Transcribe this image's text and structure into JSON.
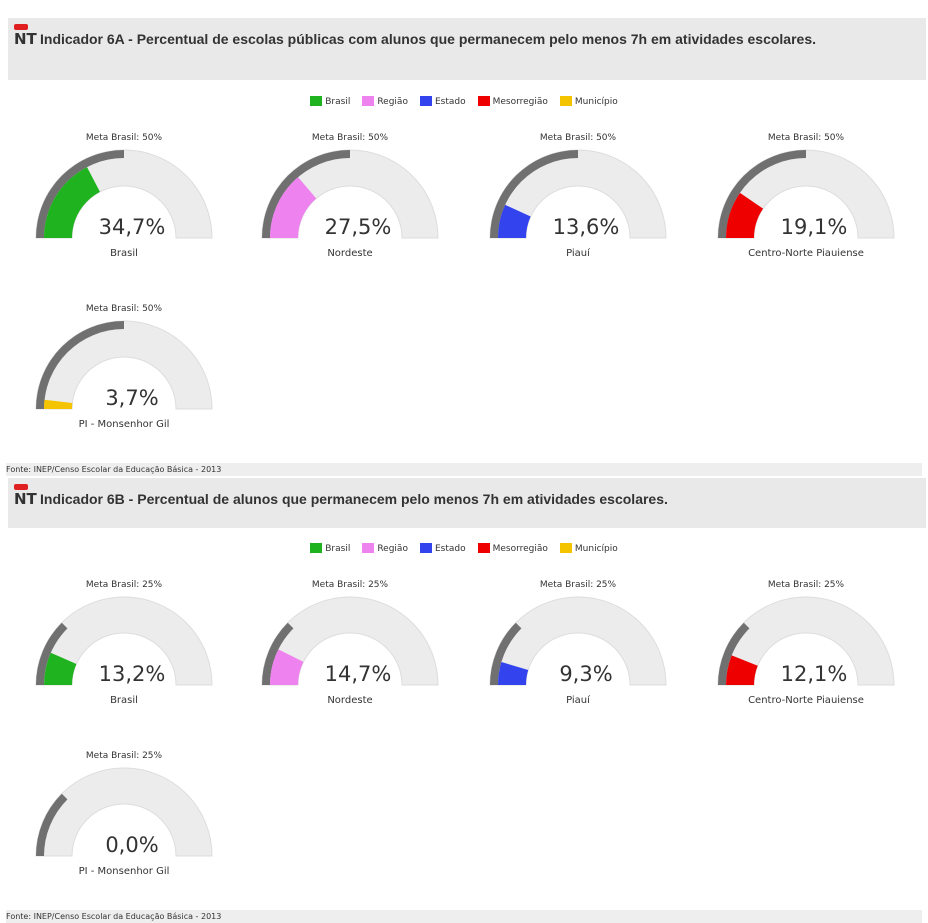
{
  "sections": [
    {
      "badge": "NT",
      "title": "Indicador 6A - Percentual de escolas públicas com alunos que permanecem pelo menos 7h em atividades escolares.",
      "legend": [
        {
          "name": "Brasil",
          "color": "#1fb31f"
        },
        {
          "name": "Região",
          "color": "#ee82ee"
        },
        {
          "name": "Estado",
          "color": "#3344ee"
        },
        {
          "name": "Mesorregião",
          "color": "#ee0000"
        },
        {
          "name": "Município",
          "color": "#f5c400"
        }
      ],
      "charts": [
        {
          "type": "gauge",
          "goal_label": "Meta Brasil: 50%",
          "goal": 50,
          "value": 34.7,
          "value_label": "34,7%",
          "name": "Brasil",
          "color": "#1fb31f",
          "ylim": [
            0,
            100
          ]
        },
        {
          "type": "gauge",
          "goal_label": "Meta Brasil: 50%",
          "goal": 50,
          "value": 27.5,
          "value_label": "27,5%",
          "name": "Nordeste",
          "color": "#ee82ee",
          "ylim": [
            0,
            100
          ]
        },
        {
          "type": "gauge",
          "goal_label": "Meta Brasil: 50%",
          "goal": 50,
          "value": 13.6,
          "value_label": "13,6%",
          "name": "Piauí",
          "color": "#3344ee",
          "ylim": [
            0,
            100
          ]
        },
        {
          "type": "gauge",
          "goal_label": "Meta Brasil: 50%",
          "goal": 50,
          "value": 19.1,
          "value_label": "19,1%",
          "name": "Centro-Norte Piauiense",
          "color": "#ee0000",
          "ylim": [
            0,
            100
          ]
        },
        {
          "type": "gauge",
          "goal_label": "Meta Brasil: 50%",
          "goal": 50,
          "value": 3.7,
          "value_label": "3,7%",
          "name": "PI - Monsenhor Gil",
          "color": "#f5c400",
          "ylim": [
            0,
            100
          ]
        }
      ],
      "source": "Fonte: INEP/Censo Escolar da Educação Básica - 2013"
    },
    {
      "badge": "NT",
      "title": "Indicador 6B - Percentual de alunos que permanecem pelo menos 7h em atividades escolares.",
      "legend": [
        {
          "name": "Brasil",
          "color": "#1fb31f"
        },
        {
          "name": "Região",
          "color": "#ee82ee"
        },
        {
          "name": "Estado",
          "color": "#3344ee"
        },
        {
          "name": "Mesorregião",
          "color": "#ee0000"
        },
        {
          "name": "Município",
          "color": "#f5c400"
        }
      ],
      "charts": [
        {
          "type": "gauge",
          "goal_label": "Meta Brasil: 25%",
          "goal": 25,
          "value": 13.2,
          "value_label": "13,2%",
          "name": "Brasil",
          "color": "#1fb31f",
          "ylim": [
            0,
            100
          ]
        },
        {
          "type": "gauge",
          "goal_label": "Meta Brasil: 25%",
          "goal": 25,
          "value": 14.7,
          "value_label": "14,7%",
          "name": "Nordeste",
          "color": "#ee82ee",
          "ylim": [
            0,
            100
          ]
        },
        {
          "type": "gauge",
          "goal_label": "Meta Brasil: 25%",
          "goal": 25,
          "value": 9.3,
          "value_label": "9,3%",
          "name": "Piauí",
          "color": "#3344ee",
          "ylim": [
            0,
            100
          ]
        },
        {
          "type": "gauge",
          "goal_label": "Meta Brasil: 25%",
          "goal": 25,
          "value": 12.1,
          "value_label": "12,1%",
          "name": "Centro-Norte Piauiense",
          "color": "#ee0000",
          "ylim": [
            0,
            100
          ]
        },
        {
          "type": "gauge",
          "goal_label": "Meta Brasil: 25%",
          "goal": 25,
          "value": 0,
          "value_label": "0,0%",
          "name": "PI - Monsenhor Gil",
          "color": "#f5c400",
          "ylim": [
            0,
            100
          ]
        }
      ],
      "source": "Fonte: INEP/Censo Escolar da Educação Básica - 2013"
    }
  ]
}
